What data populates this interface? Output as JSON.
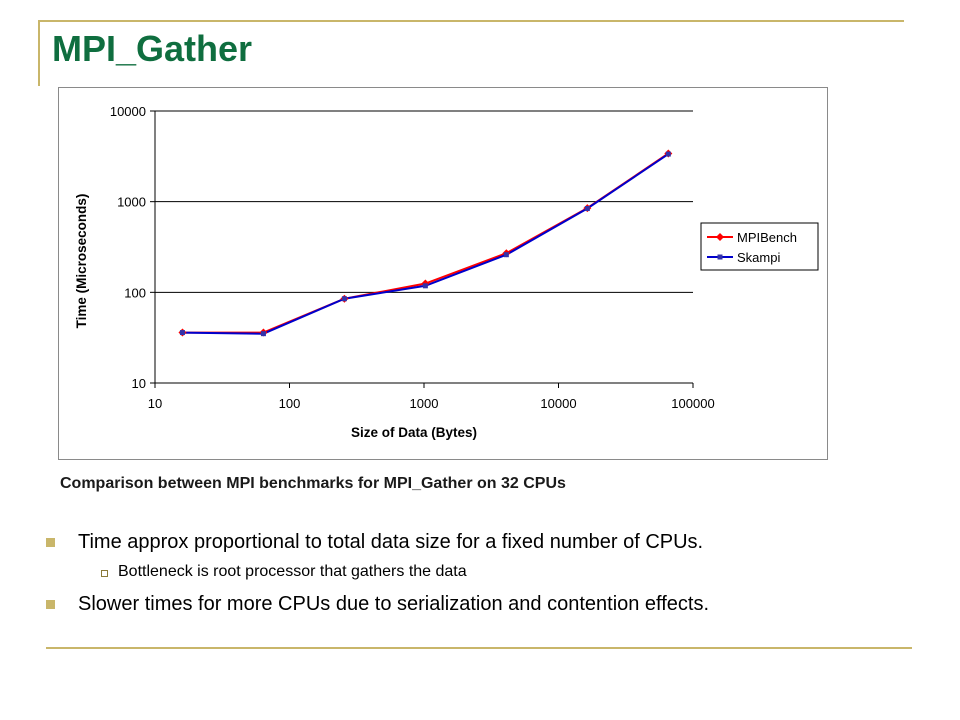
{
  "slide": {
    "title": "MPI_Gather",
    "caption": "Comparison between MPI benchmarks for MPI_Gather on 32 CPUs",
    "bullets": [
      {
        "text": "Time approx proportional to total data size for a fixed number of CPUs.",
        "level": 1
      },
      {
        "text": "Bottleneck is root processor that gathers the data",
        "level": 2
      },
      {
        "text": "Slower times for more CPUs due to serialization and contention effects.",
        "level": 1
      }
    ]
  },
  "colors": {
    "title": "#0f6e3f",
    "rule": "#c9b66a",
    "mpibench": "#ff0000",
    "skampi": "#0000cc",
    "marker": "#3333aa"
  },
  "chart_data": {
    "type": "line",
    "title": "",
    "xlabel": "Size of Data (Bytes)",
    "ylabel": "Time (Microseconds)",
    "xscale": "log",
    "yscale": "log",
    "xlim": [
      10,
      100000
    ],
    "ylim": [
      10,
      10000
    ],
    "xticks": [
      "10",
      "100",
      "1000",
      "10000",
      "100000"
    ],
    "yticks": [
      "10",
      "100",
      "1000",
      "10000"
    ],
    "grid": "horizontal major",
    "legend_position": "right",
    "x": [
      16,
      64,
      256,
      1024,
      4096,
      16384,
      65536
    ],
    "series": [
      {
        "name": "MPIBench",
        "marker": "diamond",
        "color": "#ff0000",
        "values": [
          36,
          36,
          85,
          125,
          270,
          850,
          3400
        ]
      },
      {
        "name": "Skampi",
        "marker": "square",
        "color": "#0000cc",
        "values": [
          36,
          35,
          85,
          118,
          260,
          840,
          3350
        ]
      }
    ]
  }
}
